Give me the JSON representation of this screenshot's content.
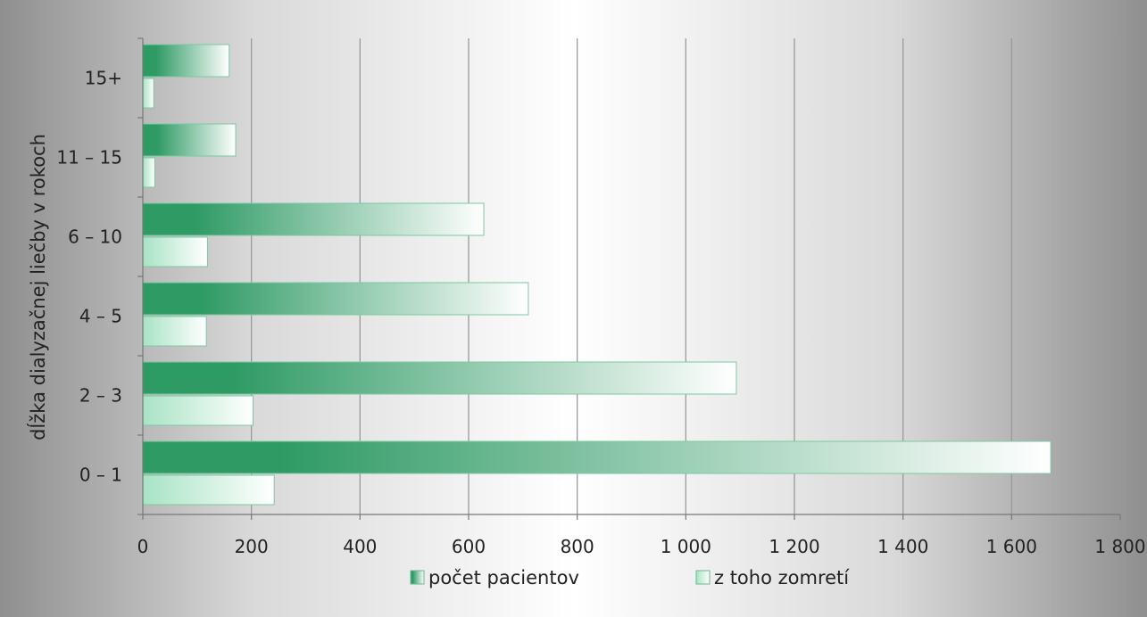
{
  "chart_data": {
    "type": "bar",
    "orientation": "horizontal",
    "categories": [
      "0 – 1",
      "2 – 3",
      "4 – 5",
      "6 – 10",
      "11 – 15",
      "15+"
    ],
    "series": [
      {
        "name": "počet pacientov",
        "values": [
          1672,
          1093,
          710,
          628,
          171,
          159
        ],
        "color": "#2e9a64"
      },
      {
        "name": "z toho zomretí",
        "values": [
          242,
          203,
          117,
          119,
          22,
          20
        ],
        "color": "#a8e3c4"
      }
    ],
    "xlim": [
      0,
      1800
    ],
    "xticks": [
      "0",
      "200",
      "400",
      "600",
      "800",
      "1 000",
      "1 200",
      "1 400",
      "1 600",
      "1 800"
    ],
    "xlabel": "",
    "ylabel": "dĺžka dialyzačnej liečby v rokoch",
    "grid": "vertical",
    "legend": "bottom"
  }
}
